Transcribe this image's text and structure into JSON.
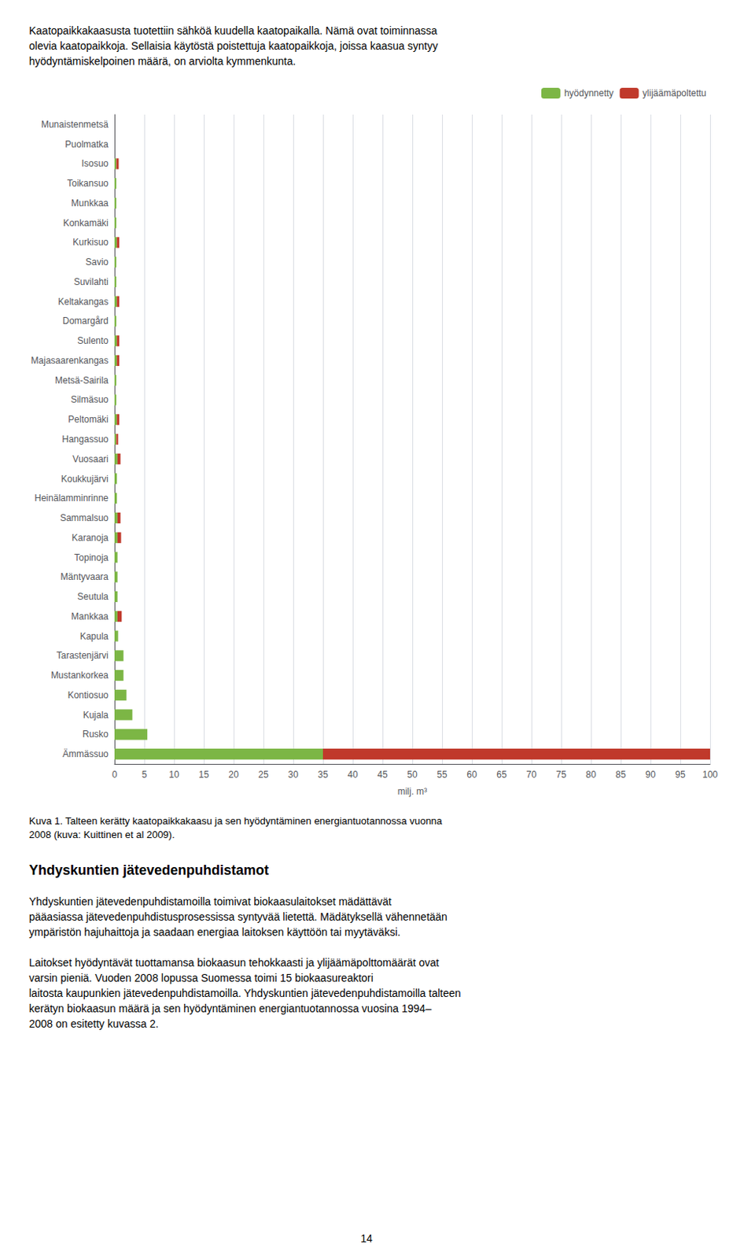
{
  "text_above": "Kaatopaikkakaasusta tuotettiin sähköä kuudella kaatopaikalla. Nämä ovat toiminnassa\nolevia kaatopaikkoja. Sellaisia käytöstä poistettuja kaatopaikkoja, joissa kaasua syntyy\nhyödyntämiskelpoinen määrä, on arviolta kymmenkunta.",
  "chart_data": {
    "type": "bar",
    "orientation": "horizontal",
    "stacked": true,
    "categories": [
      "Munaistenmetsä",
      "Puolmatka",
      "Isosuo",
      "Toikansuo",
      "Munkkaa",
      "Konkamäki",
      "Kurkisuo",
      "Savio",
      "Suvilahti",
      "Keltakangas",
      "Domargård",
      "Sulento",
      "Majasaarenkangas",
      "Metsä-Sairila",
      "Silmäsuo",
      "Peltomäki",
      "Hangassuo",
      "Vuosaari",
      "Koukkujärvi",
      "Heinälamminrinne",
      "Sammalsuo",
      "Karanoja",
      "Topinoja",
      "Mäntyvaara",
      "Seutula",
      "Mankkaa",
      "Kapula",
      "Tarastenjärvi",
      "Mustankorkea",
      "Kontiosuo",
      "Kujala",
      "Rusko",
      "Ämmässuo"
    ],
    "series": [
      {
        "name": "hyödynnetty",
        "color": "#7CB645",
        "values": [
          0,
          0,
          0.3,
          0.3,
          0.3,
          0.3,
          0.4,
          0.3,
          0.3,
          0.4,
          0.3,
          0.4,
          0.4,
          0.3,
          0.3,
          0.4,
          0.3,
          0.5,
          0.4,
          0.4,
          0.5,
          0.5,
          0.5,
          0.5,
          0.5,
          0.5,
          0.6,
          1.5,
          1.5,
          2.0,
          3.0,
          5.5,
          35.0
        ]
      },
      {
        "name": "ylijäämäpoltettu",
        "color": "#C0392B",
        "values": [
          0,
          0,
          0.4,
          0,
          0,
          0,
          0.4,
          0,
          0,
          0.4,
          0,
          0.4,
          0.4,
          0,
          0,
          0.4,
          0.3,
          0.5,
          0,
          0,
          0.5,
          0.6,
          0,
          0,
          0,
          0.7,
          0,
          0,
          0,
          0,
          0,
          0,
          65.0
        ]
      }
    ],
    "xlabel": "milj. m³",
    "xlim": [
      0,
      100
    ],
    "xticks": [
      0,
      5,
      10,
      15,
      20,
      25,
      30,
      35,
      40,
      45,
      50,
      55,
      60,
      65,
      70,
      75,
      80,
      85,
      90,
      95,
      100
    ],
    "grid": true,
    "legend": "upper right"
  },
  "caption": "Kuva 1. Talteen kerätty kaatopaikkakaasu ja sen hyödyntäminen energiantuotannossa vuonna\n2008 (kuva: Kuittinen et al 2009).",
  "heading": "Yhdyskuntien jätevedenpuhdistamot",
  "body": [
    "Yhdyskuntien jätevedenpuhdistamoilla toimivat biokaasulaitokset mädättävät\npääasiassa jätevedenpuhdistusprosessissa syntyvää lietettä. Mädätyksellä vähennetään\nympäristön hajuhaittoja ja saadaan energiaa laitoksen käyttöön tai myytäväksi.",
    "Laitokset hyödyntävät tuottamansa biokaasun tehokkaasti ja ylijäämäpolttomäärät ovat\nvarsin pieniä. Vuoden 2008 lopussa Suomessa toimi 15 biokaasureaktori\nlaitosta kaupunkien jätevedenpuhdistamoilla. Yhdyskuntien jätevedenpuhdistamoilla talteen\nkerätyn biokaasun määrä ja sen hyödyntäminen energiantuotannossa vuosina 1994–\n2008 on esitetty kuvassa 2."
  ],
  "page_number": "14"
}
